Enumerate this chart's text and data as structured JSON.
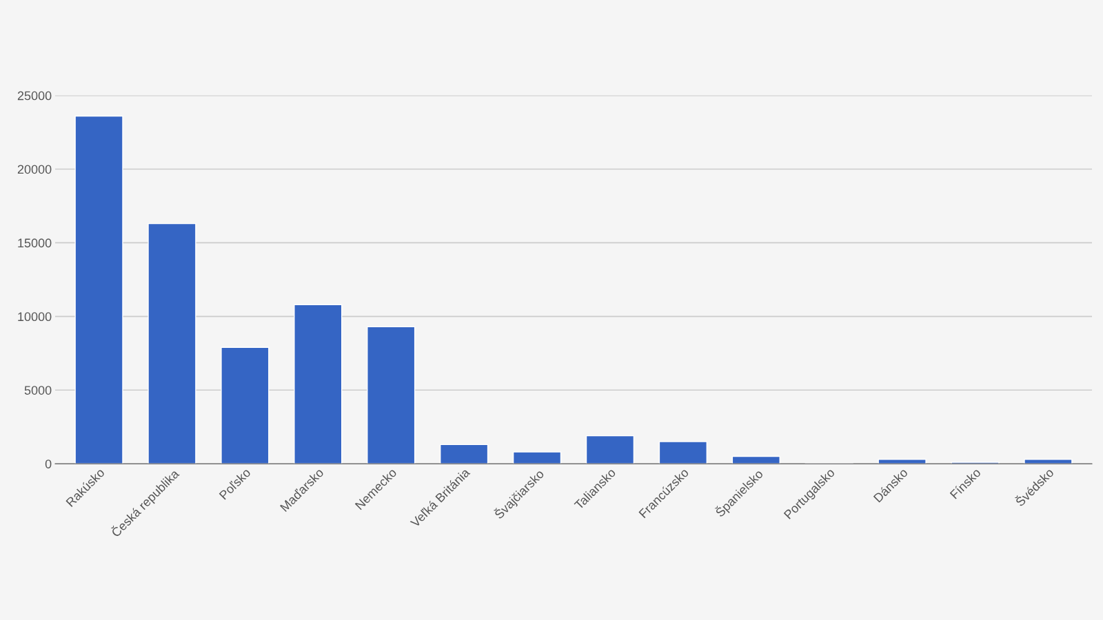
{
  "chart_data": {
    "type": "bar",
    "categories": [
      "Rakúsko",
      "Česká republika",
      "Poľsko",
      "Maďarsko",
      "Nemecko",
      "Veľká Británia",
      "Švajčiarsko",
      "Taliansko",
      "Francúzsko",
      "Španielsko",
      "Portugalsko",
      "Dánsko",
      "Fínsko",
      "Švédsko"
    ],
    "values": [
      23600,
      16300,
      7900,
      10800,
      9300,
      1300,
      800,
      1900,
      1500,
      500,
      20,
      300,
      100,
      300
    ],
    "color": "#3565c4",
    "ylim": [
      0,
      25000
    ],
    "yticks": [
      0,
      5000,
      10000,
      15000,
      20000,
      25000
    ],
    "grid": "y",
    "legend": false
  }
}
